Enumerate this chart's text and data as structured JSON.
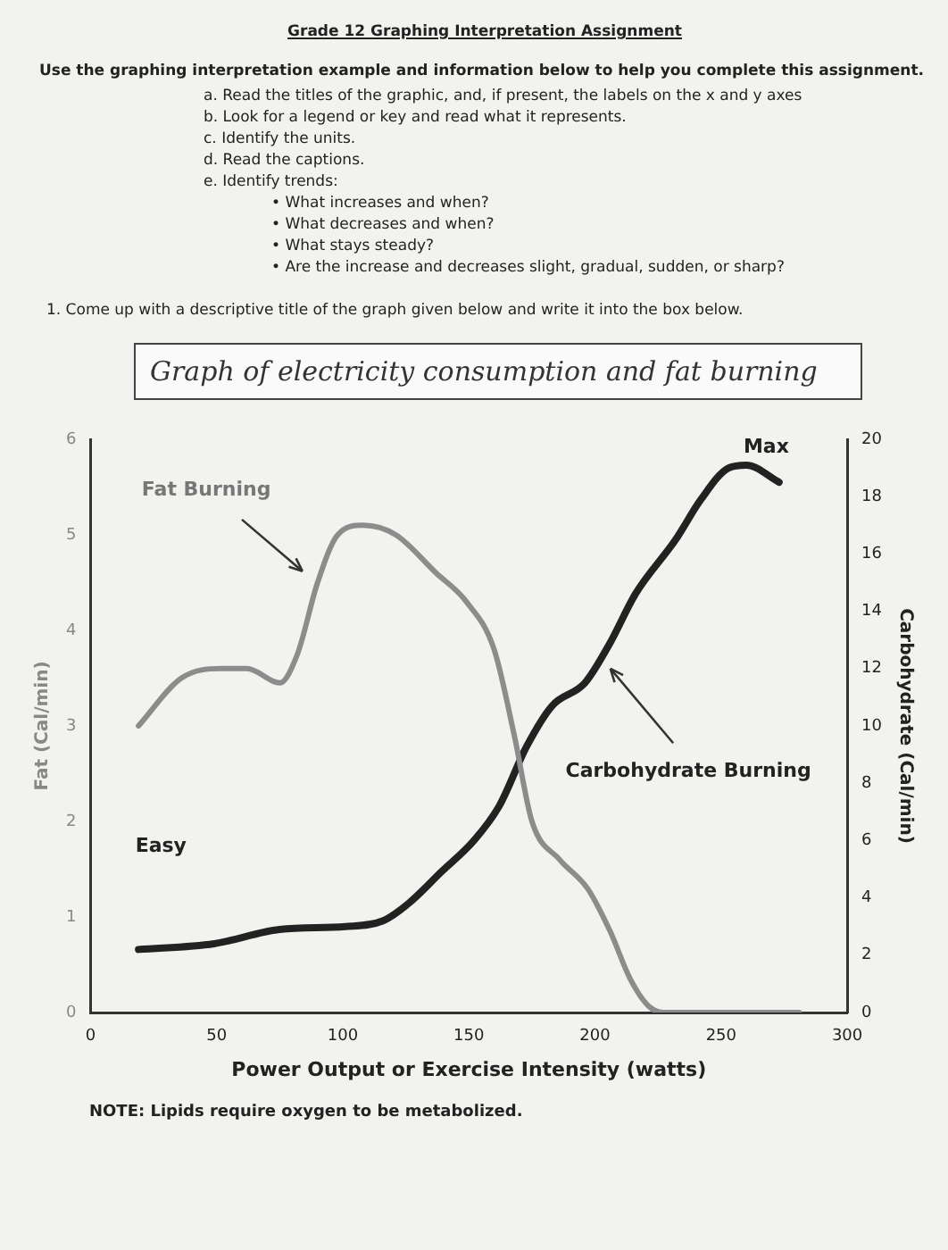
{
  "chart_data": {
    "type": "line",
    "title": "Graph of electricity consumption and fat burning",
    "xlabel": "Power Output or Exercise Intensity (watts)",
    "ylabel": "Fat (Cal/min)",
    "y2label": "Carbohydrate (Cal/min)",
    "xlim": [
      0,
      300
    ],
    "xticks": [
      0,
      50,
      100,
      150,
      200,
      250,
      300
    ],
    "ylim": [
      0,
      6
    ],
    "yticks": [
      0,
      1,
      2,
      3,
      4,
      5,
      6
    ],
    "y2lim": [
      0,
      20
    ],
    "y2ticks": [
      0,
      2,
      4,
      6,
      8,
      10,
      12,
      14,
      16,
      18,
      20
    ],
    "grid": false,
    "legend": false,
    "marker": "none",
    "line_style": "solid",
    "series": [
      {
        "color": "#8c8c8c",
        "x": [
          19,
          36,
          52,
          62,
          75,
          82,
          90,
          98,
          108,
          121,
          137,
          149,
          160,
          168,
          175,
          186,
          197,
          206,
          214,
          222,
          229,
          281
        ],
        "values": [
          3.0,
          3.5,
          3.6,
          3.6,
          3.45,
          3.75,
          4.5,
          5.0,
          5.1,
          5.0,
          4.6,
          4.3,
          3.8,
          2.9,
          2.0,
          1.6,
          1.3,
          0.85,
          0.35,
          0.05,
          0,
          0
        ]
      },
      {
        "color": "#222222",
        "axis": "y2",
        "x": [
          19,
          49,
          75,
          101,
          116,
          126,
          139,
          152,
          162,
          173,
          183,
          196,
          206,
          216,
          232,
          242,
          253,
          260,
          273
        ],
        "values": [
          2.2,
          2.4,
          2.9,
          3.0,
          3.2,
          3.8,
          4.9,
          6.0,
          7.2,
          9.3,
          10.7,
          11.5,
          12.9,
          14.6,
          16.5,
          17.9,
          19.0,
          19.1,
          18.5
        ]
      }
    ],
    "annotations": [
      "Grade 12 Graphing Interpretation Assignment",
      "Use the graphing interpretation example and information below to help you complete this assignment.",
      "a. Read the titles of the graphic, and, if present, the labels on the x and y axes",
      "b. Look for a legend or key and read what it represents.",
      "c. Identify the units.",
      "d. Read the captions.",
      "e. Identify trends:",
      "• What increases and when?",
      "• What decreases and when?",
      "• What stays steady?",
      "• Are the increase and decreases slight, gradual, sudden, or sharp?",
      "1. Come up with a descriptive title of the graph given below and write it into the box below.",
      "Fat Burning",
      "Easy",
      "Carbohydrate Burning",
      "Max",
      "NOTE: Lipids require oxygen to be metabolized."
    ]
  }
}
